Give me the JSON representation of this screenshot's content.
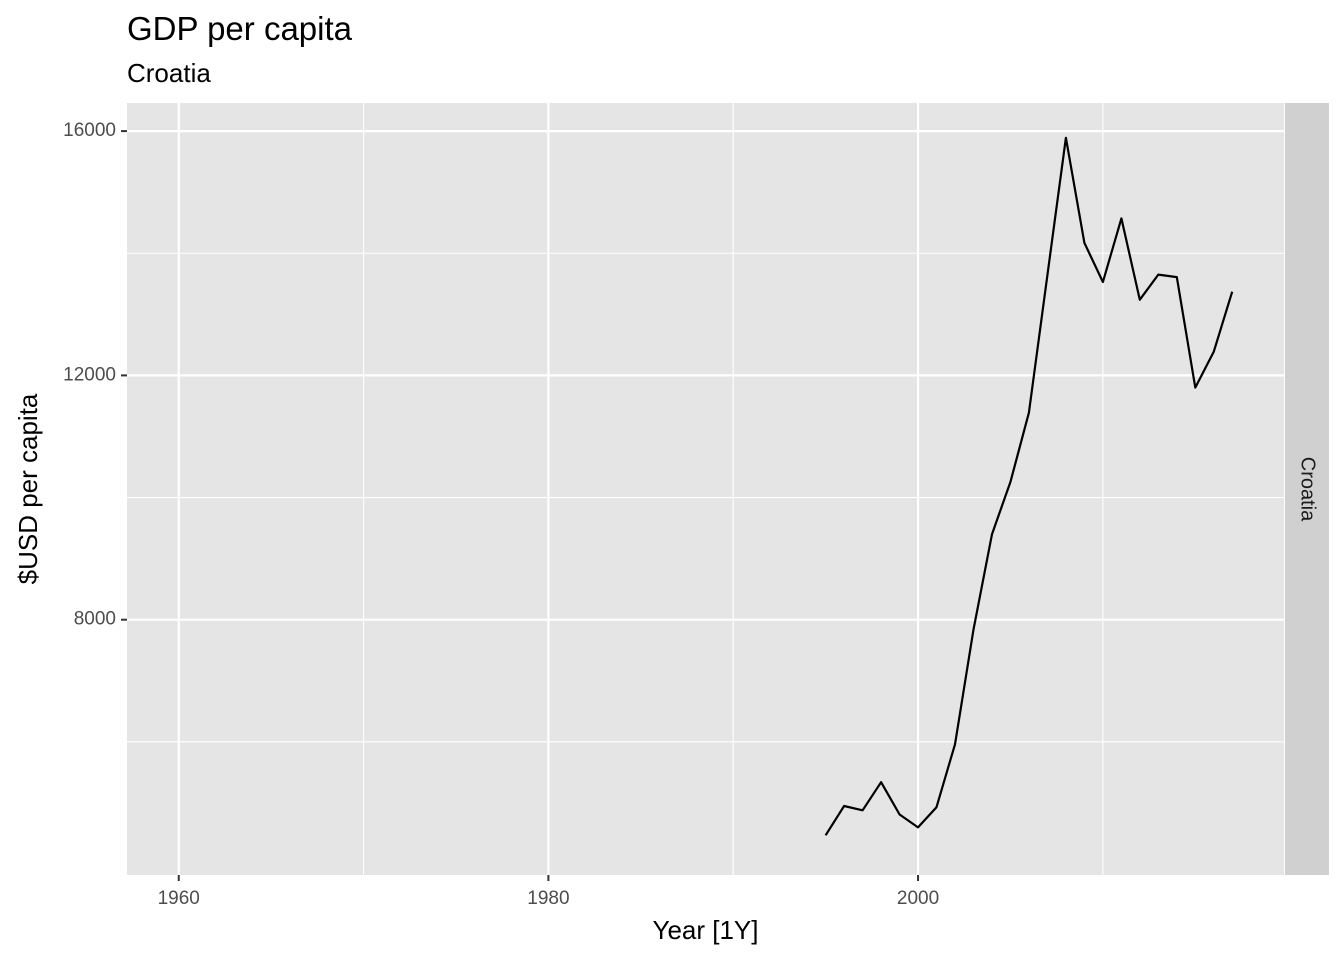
{
  "chart_data": {
    "type": "line",
    "title": "GDP per capita",
    "subtitle": "Croatia",
    "xlabel": "Year [1Y]",
    "ylabel": "$USD per capita",
    "facet_label": "Croatia",
    "xlim": [
      1957.2,
      2019.8
    ],
    "ylim": [
      3820,
      16460
    ],
    "x_ticks": [
      1960,
      1980,
      2000
    ],
    "x_minor_ticks": [
      1970,
      1990,
      2010
    ],
    "y_ticks": [
      8000,
      12000,
      16000
    ],
    "y_minor_ticks": [
      6000,
      10000,
      14000
    ],
    "grid": true,
    "line_color": "#000000",
    "panel_color": "#e5e5e5",
    "strip_color": "#d0d0d0",
    "series": [
      {
        "x": [
          1995,
          1996,
          1997,
          1998,
          1999,
          2000,
          2001,
          2002,
          2003,
          2004,
          2005,
          2006,
          2007,
          2008,
          2009,
          2010,
          2011,
          2012,
          2013,
          2014,
          2015,
          2016,
          2017
        ],
        "values": [
          4470,
          4950,
          4880,
          5340,
          4810,
          4600,
          4930,
          5960,
          7840,
          9400,
          10260,
          11390,
          13640,
          15890,
          14170,
          13530,
          14570,
          13240,
          13650,
          13610,
          11800,
          12390,
          13370
        ]
      }
    ]
  }
}
